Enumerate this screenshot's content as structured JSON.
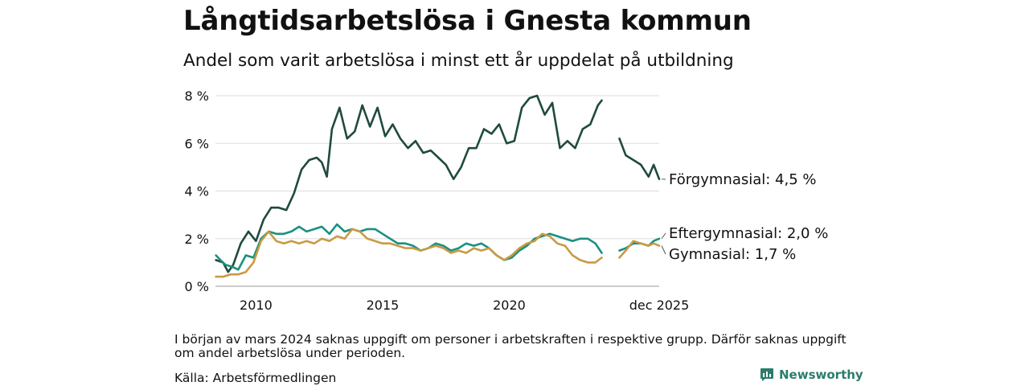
{
  "title": "Långtidsarbetslösa i Gnesta kommun",
  "subtitle": "Andel som varit arbetslösa i minst ett år uppdelat på utbildning",
  "note": "I början av mars 2024 saknas uppgift om personer i arbetskraften i respektive grupp. Därför saknas uppgift om andel arbetslösa under perioden.",
  "source": "Källa: Arbetsförmedlingen",
  "brand": "Newsworthy",
  "chart_data": {
    "type": "line",
    "title": "Långtidsarbetslösa i Gnesta kommun",
    "xlabel": "",
    "ylabel": "",
    "xlim": [
      2008.4,
      2025.92
    ],
    "ylim": [
      0,
      8
    ],
    "y_ticks": [
      0,
      2,
      4,
      6,
      8
    ],
    "y_tick_labels": [
      "0 %",
      "2 %",
      "4 %",
      "6 %",
      "8 %"
    ],
    "x_ticks": [
      2010,
      2015,
      2020,
      2025.92
    ],
    "x_tick_labels": [
      "2010",
      "2015",
      "2020",
      "dec 2025"
    ],
    "grid": true,
    "gap": [
      2023.7,
      2024.35
    ],
    "series": [
      {
        "name": "Förgymnasial",
        "end_label": "Förgymnasial: 4,5 %",
        "color": "#1f4a3f",
        "points": [
          [
            2008.42,
            1.1
          ],
          [
            2008.7,
            1.0
          ],
          [
            2008.9,
            0.6
          ],
          [
            2009.1,
            0.9
          ],
          [
            2009.4,
            1.8
          ],
          [
            2009.7,
            2.3
          ],
          [
            2010.0,
            1.9
          ],
          [
            2010.3,
            2.8
          ],
          [
            2010.6,
            3.3
          ],
          [
            2010.9,
            3.3
          ],
          [
            2011.2,
            3.2
          ],
          [
            2011.5,
            3.9
          ],
          [
            2011.8,
            4.9
          ],
          [
            2012.1,
            5.3
          ],
          [
            2012.4,
            5.4
          ],
          [
            2012.6,
            5.2
          ],
          [
            2012.8,
            4.6
          ],
          [
            2013.0,
            6.6
          ],
          [
            2013.3,
            7.5
          ],
          [
            2013.6,
            6.2
          ],
          [
            2013.9,
            6.5
          ],
          [
            2014.2,
            7.6
          ],
          [
            2014.5,
            6.7
          ],
          [
            2014.8,
            7.5
          ],
          [
            2015.1,
            6.3
          ],
          [
            2015.4,
            6.8
          ],
          [
            2015.7,
            6.2
          ],
          [
            2016.0,
            5.8
          ],
          [
            2016.3,
            6.1
          ],
          [
            2016.6,
            5.6
          ],
          [
            2016.9,
            5.7
          ],
          [
            2017.2,
            5.4
          ],
          [
            2017.5,
            5.1
          ],
          [
            2017.8,
            4.5
          ],
          [
            2018.1,
            5.0
          ],
          [
            2018.4,
            5.8
          ],
          [
            2018.7,
            5.8
          ],
          [
            2019.0,
            6.6
          ],
          [
            2019.3,
            6.4
          ],
          [
            2019.6,
            6.8
          ],
          [
            2019.9,
            6.0
          ],
          [
            2020.2,
            6.1
          ],
          [
            2020.5,
            7.5
          ],
          [
            2020.8,
            7.9
          ],
          [
            2021.1,
            8.0
          ],
          [
            2021.4,
            7.2
          ],
          [
            2021.7,
            7.7
          ],
          [
            2022.0,
            5.8
          ],
          [
            2022.3,
            6.1
          ],
          [
            2022.6,
            5.8
          ],
          [
            2022.9,
            6.6
          ],
          [
            2023.2,
            6.8
          ],
          [
            2023.5,
            7.6
          ],
          [
            2023.65,
            7.8
          ],
          [
            2024.35,
            6.2
          ],
          [
            2024.6,
            5.5
          ],
          [
            2024.9,
            5.3
          ],
          [
            2025.2,
            5.1
          ],
          [
            2025.5,
            4.6
          ],
          [
            2025.7,
            5.1
          ],
          [
            2025.92,
            4.5
          ]
        ]
      },
      {
        "name": "Eftergymnasial",
        "end_label": "Eftergymnasial: 2,0 %",
        "color": "#1a9080",
        "points": [
          [
            2008.42,
            1.3
          ],
          [
            2008.6,
            1.1
          ],
          [
            2008.8,
            0.9
          ],
          [
            2009.1,
            0.8
          ],
          [
            2009.3,
            0.7
          ],
          [
            2009.6,
            1.3
          ],
          [
            2009.9,
            1.2
          ],
          [
            2010.2,
            2.0
          ],
          [
            2010.5,
            2.3
          ],
          [
            2010.8,
            2.2
          ],
          [
            2011.1,
            2.2
          ],
          [
            2011.4,
            2.3
          ],
          [
            2011.7,
            2.5
          ],
          [
            2012.0,
            2.3
          ],
          [
            2012.3,
            2.4
          ],
          [
            2012.6,
            2.5
          ],
          [
            2012.9,
            2.2
          ],
          [
            2013.2,
            2.6
          ],
          [
            2013.5,
            2.3
          ],
          [
            2013.8,
            2.4
          ],
          [
            2014.1,
            2.3
          ],
          [
            2014.4,
            2.4
          ],
          [
            2014.7,
            2.4
          ],
          [
            2015.0,
            2.2
          ],
          [
            2015.3,
            2.0
          ],
          [
            2015.6,
            1.8
          ],
          [
            2015.9,
            1.8
          ],
          [
            2016.2,
            1.7
          ],
          [
            2016.5,
            1.5
          ],
          [
            2016.8,
            1.6
          ],
          [
            2017.1,
            1.8
          ],
          [
            2017.4,
            1.7
          ],
          [
            2017.7,
            1.5
          ],
          [
            2018.0,
            1.6
          ],
          [
            2018.3,
            1.8
          ],
          [
            2018.6,
            1.7
          ],
          [
            2018.9,
            1.8
          ],
          [
            2019.2,
            1.6
          ],
          [
            2019.5,
            1.3
          ],
          [
            2019.8,
            1.1
          ],
          [
            2020.1,
            1.2
          ],
          [
            2020.4,
            1.5
          ],
          [
            2020.7,
            1.7
          ],
          [
            2021.0,
            2.0
          ],
          [
            2021.3,
            2.1
          ],
          [
            2021.6,
            2.2
          ],
          [
            2021.9,
            2.1
          ],
          [
            2022.2,
            2.0
          ],
          [
            2022.5,
            1.9
          ],
          [
            2022.8,
            2.0
          ],
          [
            2023.1,
            2.0
          ],
          [
            2023.4,
            1.8
          ],
          [
            2023.65,
            1.4
          ],
          [
            2024.35,
            1.5
          ],
          [
            2024.6,
            1.6
          ],
          [
            2024.9,
            1.8
          ],
          [
            2025.2,
            1.8
          ],
          [
            2025.5,
            1.7
          ],
          [
            2025.7,
            1.9
          ],
          [
            2025.92,
            2.0
          ]
        ]
      },
      {
        "name": "Gymnasial",
        "end_label": "Gymnasial: 1,7 %",
        "color": "#c99a45",
        "points": [
          [
            2008.42,
            0.4
          ],
          [
            2008.7,
            0.4
          ],
          [
            2009.0,
            0.5
          ],
          [
            2009.3,
            0.5
          ],
          [
            2009.6,
            0.6
          ],
          [
            2009.9,
            1.0
          ],
          [
            2010.2,
            1.9
          ],
          [
            2010.5,
            2.3
          ],
          [
            2010.8,
            1.9
          ],
          [
            2011.1,
            1.8
          ],
          [
            2011.4,
            1.9
          ],
          [
            2011.7,
            1.8
          ],
          [
            2012.0,
            1.9
          ],
          [
            2012.3,
            1.8
          ],
          [
            2012.6,
            2.0
          ],
          [
            2012.9,
            1.9
          ],
          [
            2013.2,
            2.1
          ],
          [
            2013.5,
            2.0
          ],
          [
            2013.8,
            2.4
          ],
          [
            2014.1,
            2.3
          ],
          [
            2014.4,
            2.0
          ],
          [
            2014.7,
            1.9
          ],
          [
            2015.0,
            1.8
          ],
          [
            2015.3,
            1.8
          ],
          [
            2015.6,
            1.7
          ],
          [
            2015.9,
            1.6
          ],
          [
            2016.2,
            1.6
          ],
          [
            2016.5,
            1.5
          ],
          [
            2016.8,
            1.6
          ],
          [
            2017.1,
            1.7
          ],
          [
            2017.4,
            1.6
          ],
          [
            2017.7,
            1.4
          ],
          [
            2018.0,
            1.5
          ],
          [
            2018.3,
            1.4
          ],
          [
            2018.6,
            1.6
          ],
          [
            2018.9,
            1.5
          ],
          [
            2019.2,
            1.6
          ],
          [
            2019.5,
            1.3
          ],
          [
            2019.8,
            1.1
          ],
          [
            2020.1,
            1.3
          ],
          [
            2020.4,
            1.6
          ],
          [
            2020.7,
            1.8
          ],
          [
            2021.0,
            1.9
          ],
          [
            2021.3,
            2.2
          ],
          [
            2021.6,
            2.1
          ],
          [
            2021.9,
            1.8
          ],
          [
            2022.2,
            1.7
          ],
          [
            2022.5,
            1.3
          ],
          [
            2022.8,
            1.1
          ],
          [
            2023.1,
            1.0
          ],
          [
            2023.4,
            1.0
          ],
          [
            2023.65,
            1.2
          ],
          [
            2024.35,
            1.2
          ],
          [
            2024.6,
            1.5
          ],
          [
            2024.9,
            1.9
          ],
          [
            2025.2,
            1.8
          ],
          [
            2025.5,
            1.7
          ],
          [
            2025.7,
            1.8
          ],
          [
            2025.92,
            1.7
          ]
        ]
      }
    ]
  }
}
